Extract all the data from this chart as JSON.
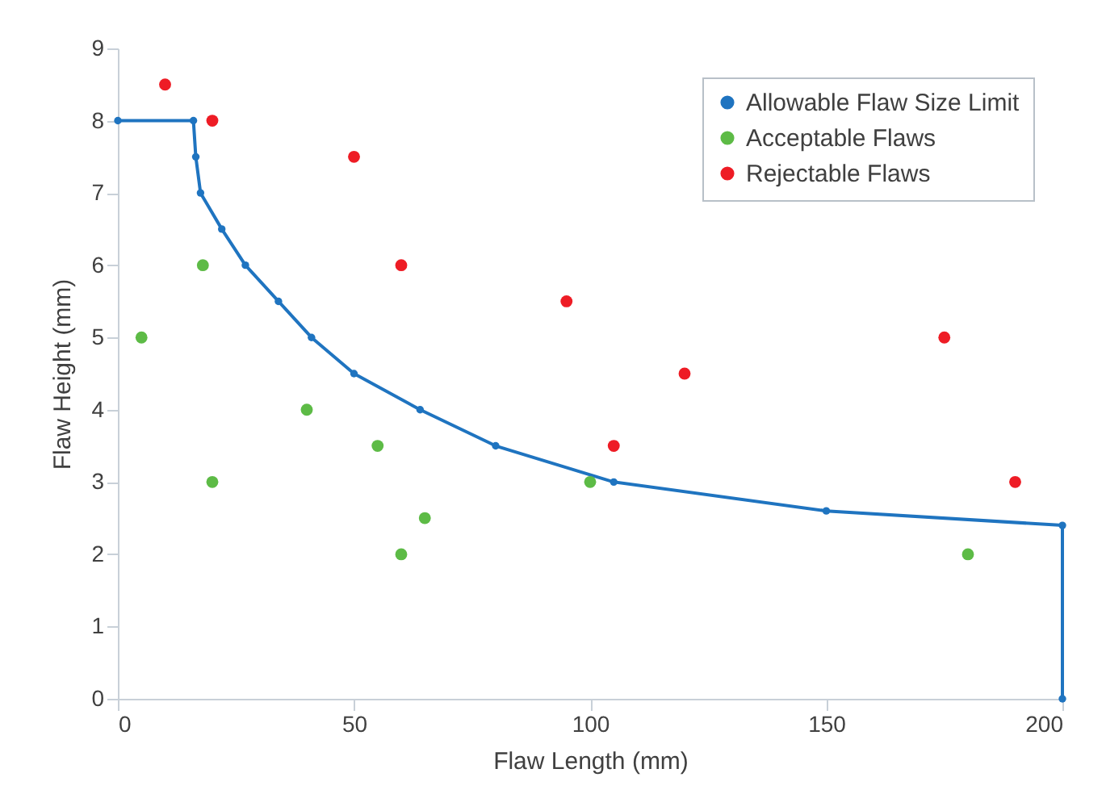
{
  "chart_data": {
    "type": "scatter",
    "xlabel": "Flaw Length (mm)",
    "ylabel": "Flaw Height (mm)",
    "xlim": [
      0,
      200
    ],
    "xticks": [
      0,
      50,
      100,
      150,
      200
    ],
    "ylim": [
      0,
      9
    ],
    "yticks": [
      0,
      1,
      2,
      3,
      4,
      5,
      6,
      7,
      8,
      9
    ],
    "grid": false,
    "legend": "top right",
    "series": [
      {
        "name": "Allowable Flaw Size Limit",
        "type": "line",
        "marker": "circle",
        "line_style": "solid",
        "color": "#1f74c0",
        "x": [
          0,
          16,
          16.5,
          17.5,
          22,
          27,
          34,
          41,
          50,
          64,
          80,
          105,
          150,
          200,
          200
        ],
        "values": [
          8,
          8,
          7.5,
          7,
          6.5,
          6,
          5.5,
          5,
          4.5,
          4,
          3.5,
          3,
          2.6,
          2.4,
          0
        ]
      },
      {
        "name": "Acceptable Flaws",
        "marker": "circle",
        "color": "#5dbb46",
        "x": [
          5,
          18,
          20,
          40,
          55,
          60,
          65,
          100,
          180
        ],
        "values": [
          5,
          6,
          3,
          4,
          3.5,
          2,
          2.5,
          3,
          2
        ]
      },
      {
        "name": "Rejectable Flaws",
        "marker": "circle",
        "color": "#ee1c25",
        "x": [
          10,
          20,
          50,
          60,
          95,
          105,
          120,
          175,
          190
        ],
        "values": [
          8.5,
          8,
          7.5,
          6,
          5.5,
          3.5,
          4.5,
          5,
          3
        ]
      }
    ]
  }
}
